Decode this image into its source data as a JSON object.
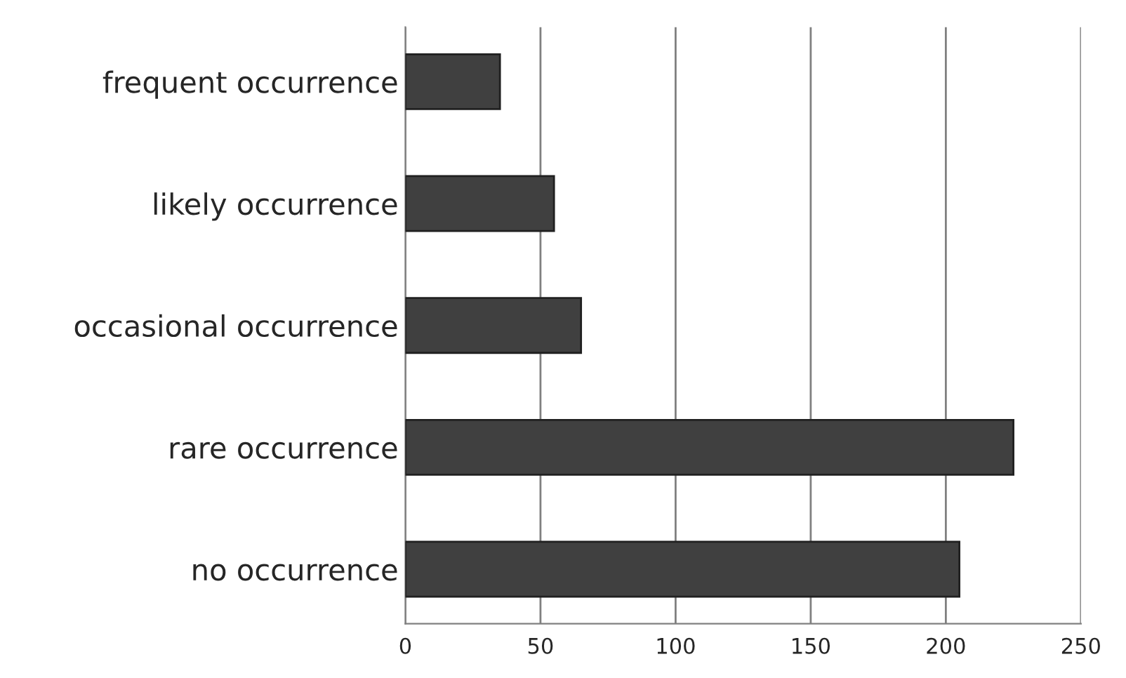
{
  "chart_data": {
    "type": "bar",
    "orientation": "horizontal",
    "categories": [
      "frequent occurrence",
      "likely occurrence",
      "occasional occurrence",
      "rare occurrence",
      "no occurrence"
    ],
    "values": [
      35,
      55,
      65,
      225,
      205
    ],
    "color": "#404040",
    "xlim": [
      0,
      250
    ],
    "xticks": [
      0,
      50,
      100,
      150,
      200,
      250
    ],
    "grid": "x"
  }
}
